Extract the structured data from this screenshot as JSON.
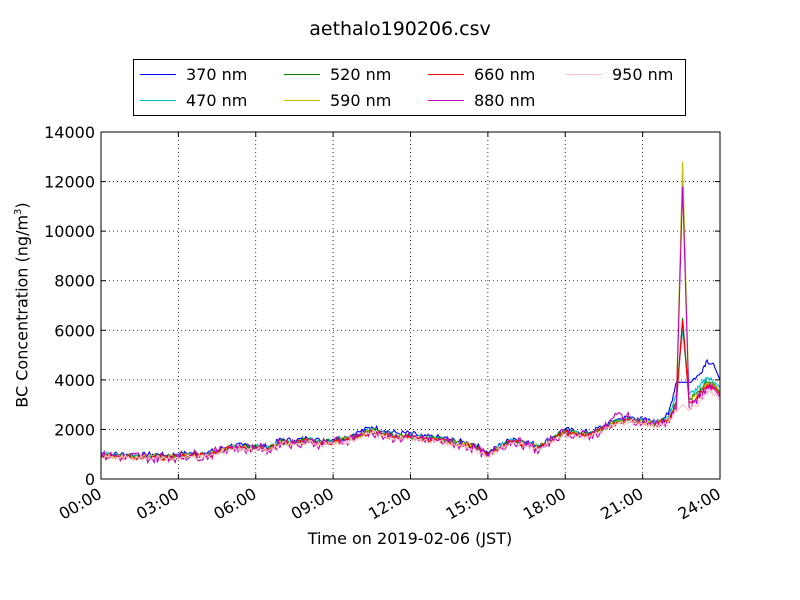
{
  "chart_data": {
    "type": "line",
    "title": "aethalo190206.csv",
    "xlabel": "Time on 2019-02-06 (JST)",
    "ylabel_prefix": "BC Concentration (ng/m",
    "ylabel_sup": "3",
    "ylabel_suffix": ")",
    "xlim": [
      0,
      24
    ],
    "ylim": [
      0,
      14000
    ],
    "x_ticks": [
      0,
      3,
      6,
      9,
      12,
      15,
      18,
      21,
      24
    ],
    "x_tick_labels": [
      "00:00",
      "03:00",
      "06:00",
      "09:00",
      "12:00",
      "15:00",
      "18:00",
      "21:00",
      "24:00"
    ],
    "y_ticks": [
      0,
      2000,
      4000,
      6000,
      8000,
      10000,
      12000,
      14000
    ],
    "y_tick_labels": [
      "0",
      "2000",
      "4000",
      "6000",
      "8000",
      "10000",
      "12000",
      "14000"
    ],
    "grid": true,
    "legend_position": "top-center",
    "series": [
      {
        "name": "370 nm",
        "color": "#0000ff",
        "x": [
          0,
          0.5,
          1,
          1.5,
          2,
          2.5,
          3,
          3.5,
          4,
          4.5,
          5,
          5.5,
          6,
          6.5,
          7,
          7.5,
          8,
          8.5,
          9,
          9.5,
          10,
          10.5,
          11,
          11.5,
          12,
          12.5,
          13,
          13.5,
          14,
          14.5,
          15,
          15.5,
          16,
          16.5,
          17,
          17.5,
          18,
          18.5,
          19,
          19.5,
          20,
          20.5,
          21,
          21.5,
          22,
          22.3,
          22.55,
          22.8,
          23.2,
          23.5,
          23.8,
          24
        ],
        "y": [
          1050,
          1000,
          1000,
          950,
          1000,
          950,
          1000,
          1050,
          1050,
          1150,
          1350,
          1350,
          1350,
          1300,
          1600,
          1550,
          1650,
          1550,
          1600,
          1700,
          1900,
          2100,
          1950,
          1850,
          1850,
          1700,
          1700,
          1600,
          1500,
          1400,
          1050,
          1400,
          1650,
          1500,
          1350,
          1700,
          2000,
          1900,
          1900,
          2150,
          2400,
          2500,
          2400,
          2300,
          2600,
          3900,
          3900,
          3900,
          4200,
          4800,
          4500,
          4000
        ]
      },
      {
        "name": "470 nm",
        "color": "#00bfbf",
        "x": [
          0,
          0.5,
          1,
          1.5,
          2,
          2.5,
          3,
          3.5,
          4,
          4.5,
          5,
          5.5,
          6,
          6.5,
          7,
          7.5,
          8,
          8.5,
          9,
          9.5,
          10,
          10.5,
          11,
          11.5,
          12,
          12.5,
          13,
          13.5,
          14,
          14.5,
          15,
          15.5,
          16,
          16.5,
          17,
          17.5,
          18,
          18.5,
          19,
          19.5,
          20,
          20.5,
          21,
          21.5,
          22,
          22.3,
          22.55,
          22.8,
          23.2,
          23.5,
          23.8,
          24
        ],
        "y": [
          1000,
          950,
          950,
          900,
          950,
          900,
          950,
          1000,
          1000,
          1100,
          1300,
          1300,
          1300,
          1250,
          1550,
          1500,
          1600,
          1500,
          1550,
          1650,
          1800,
          2000,
          1850,
          1750,
          1750,
          1650,
          1650,
          1550,
          1450,
          1350,
          1000,
          1350,
          1600,
          1450,
          1300,
          1650,
          1950,
          1850,
          1850,
          2100,
          2350,
          2450,
          2350,
          2250,
          2500,
          3400,
          6000,
          3400,
          3700,
          4100,
          3900,
          3700
        ]
      },
      {
        "name": "520 nm",
        "color": "#008000",
        "x": [
          0,
          0.5,
          1,
          1.5,
          2,
          2.5,
          3,
          3.5,
          4,
          4.5,
          5,
          5.5,
          6,
          6.5,
          7,
          7.5,
          8,
          8.5,
          9,
          9.5,
          10,
          10.5,
          11,
          11.5,
          12,
          12.5,
          13,
          13.5,
          14,
          14.5,
          15,
          15.5,
          16,
          16.5,
          17,
          17.5,
          18,
          18.5,
          19,
          19.5,
          20,
          20.5,
          21,
          21.5,
          22,
          22.3,
          22.55,
          22.8,
          23.2,
          23.5,
          23.8,
          24
        ],
        "y": [
          980,
          930,
          930,
          880,
          930,
          880,
          930,
          980,
          980,
          1080,
          1280,
          1280,
          1280,
          1230,
          1520,
          1480,
          1580,
          1480,
          1520,
          1620,
          1760,
          1960,
          1820,
          1720,
          1720,
          1620,
          1620,
          1520,
          1420,
          1320,
          980,
          1320,
          1570,
          1420,
          1280,
          1620,
          1920,
          1820,
          1820,
          2070,
          2320,
          2420,
          2320,
          2220,
          2450,
          3100,
          6500,
          3200,
          3500,
          3900,
          3800,
          3500
        ]
      },
      {
        "name": "590 nm",
        "color": "#bfbf00",
        "x": [
          0,
          0.5,
          1,
          1.5,
          2,
          2.5,
          3,
          3.5,
          4,
          4.5,
          5,
          5.5,
          6,
          6.5,
          7,
          7.5,
          8,
          8.5,
          9,
          9.5,
          10,
          10.5,
          11,
          11.5,
          12,
          12.5,
          13,
          13.5,
          14,
          14.5,
          15,
          15.5,
          16,
          16.5,
          17,
          17.5,
          18,
          18.5,
          19,
          19.5,
          20,
          20.5,
          21,
          21.5,
          22,
          22.3,
          22.55,
          22.8,
          23.2,
          23.5,
          23.8,
          24
        ],
        "y": [
          960,
          920,
          920,
          870,
          920,
          870,
          920,
          960,
          960,
          1070,
          1270,
          1270,
          1270,
          1220,
          1500,
          1460,
          1560,
          1460,
          1500,
          1600,
          1740,
          1940,
          1800,
          1700,
          1700,
          1600,
          1600,
          1500,
          1400,
          1300,
          960,
          1300,
          1550,
          1400,
          1260,
          1600,
          1900,
          1800,
          1800,
          2050,
          2300,
          2400,
          2300,
          2200,
          2420,
          3000,
          12800,
          3100,
          3450,
          3850,
          3750,
          3450
        ]
      },
      {
        "name": "660 nm",
        "color": "#ff0000",
        "x": [
          0,
          0.5,
          1,
          1.5,
          2,
          2.5,
          3,
          3.5,
          4,
          4.5,
          5,
          5.5,
          6,
          6.5,
          7,
          7.5,
          8,
          8.5,
          9,
          9.5,
          10,
          10.5,
          11,
          11.5,
          12,
          12.5,
          13,
          13.5,
          14,
          14.5,
          15,
          15.5,
          16,
          16.5,
          17,
          17.5,
          18,
          18.5,
          19,
          19.5,
          20,
          20.5,
          21,
          21.5,
          22,
          22.3,
          22.55,
          22.8,
          23.2,
          23.5,
          23.8,
          24
        ],
        "y": [
          950,
          900,
          900,
          850,
          900,
          850,
          900,
          950,
          950,
          1050,
          1250,
          1250,
          1250,
          1200,
          1480,
          1440,
          1540,
          1440,
          1480,
          1580,
          1720,
          1920,
          1780,
          1680,
          1680,
          1580,
          1580,
          1480,
          1380,
          1280,
          950,
          1280,
          1530,
          1380,
          1240,
          1580,
          1880,
          1780,
          1780,
          2030,
          2280,
          2380,
          2280,
          2180,
          2400,
          2950,
          6400,
          3050,
          3400,
          3800,
          3700,
          3400
        ]
      },
      {
        "name": "880 nm",
        "color": "#bf00bf",
        "x": [
          0,
          0.5,
          1,
          1.5,
          2,
          2.5,
          3,
          3.5,
          4,
          4.5,
          5,
          5.5,
          6,
          6.5,
          7,
          7.5,
          8,
          8.5,
          9,
          9.5,
          10,
          10.5,
          11,
          11.5,
          12,
          12.5,
          13,
          13.5,
          14,
          14.5,
          15,
          15.5,
          16,
          16.5,
          17,
          17.5,
          18,
          18.5,
          19,
          19.5,
          20,
          20.5,
          21,
          21.5,
          22,
          22.3,
          22.55,
          22.8,
          23.2,
          23.5,
          23.8,
          24
        ],
        "y": [
          900,
          950,
          850,
          950,
          800,
          950,
          850,
          1000,
          900,
          1100,
          1300,
          1200,
          1300,
          1150,
          1500,
          1400,
          1550,
          1400,
          1500,
          1550,
          1800,
          1900,
          1700,
          1650,
          1650,
          1600,
          1550,
          1500,
          1350,
          1250,
          900,
          1300,
          1550,
          1350,
          1150,
          1600,
          1900,
          1750,
          1750,
          2000,
          2600,
          2450,
          2300,
          2200,
          2300,
          2800,
          11800,
          2900,
          3300,
          3700,
          3600,
          3300
        ]
      },
      {
        "name": "950 nm",
        "color": "#ffc0cb",
        "x": [
          0,
          0.5,
          1,
          1.5,
          2,
          2.5,
          3,
          3.5,
          4,
          4.5,
          5,
          5.5,
          6,
          6.5,
          7,
          7.5,
          8,
          8.5,
          9,
          9.5,
          10,
          10.5,
          11,
          11.5,
          12,
          12.5,
          13,
          13.5,
          14,
          14.5,
          15,
          15.5,
          16,
          16.5,
          17,
          17.5,
          18,
          18.5,
          19,
          19.5,
          20,
          20.5,
          21,
          21.5,
          22,
          22.3,
          22.55,
          22.8,
          23.2,
          23.5,
          23.8,
          24
        ],
        "y": [
          880,
          850,
          860,
          820,
          860,
          820,
          860,
          900,
          900,
          1000,
          1200,
          1200,
          1200,
          1150,
          1420,
          1380,
          1480,
          1380,
          1420,
          1520,
          1650,
          1850,
          1720,
          1620,
          1620,
          1520,
          1520,
          1420,
          1320,
          1220,
          900,
          1220,
          1470,
          1320,
          1180,
          1520,
          1820,
          1720,
          1720,
          1970,
          2220,
          2320,
          2220,
          2120,
          2300,
          2700,
          3000,
          2750,
          3100,
          3550,
          3450,
          3150
        ]
      }
    ]
  }
}
